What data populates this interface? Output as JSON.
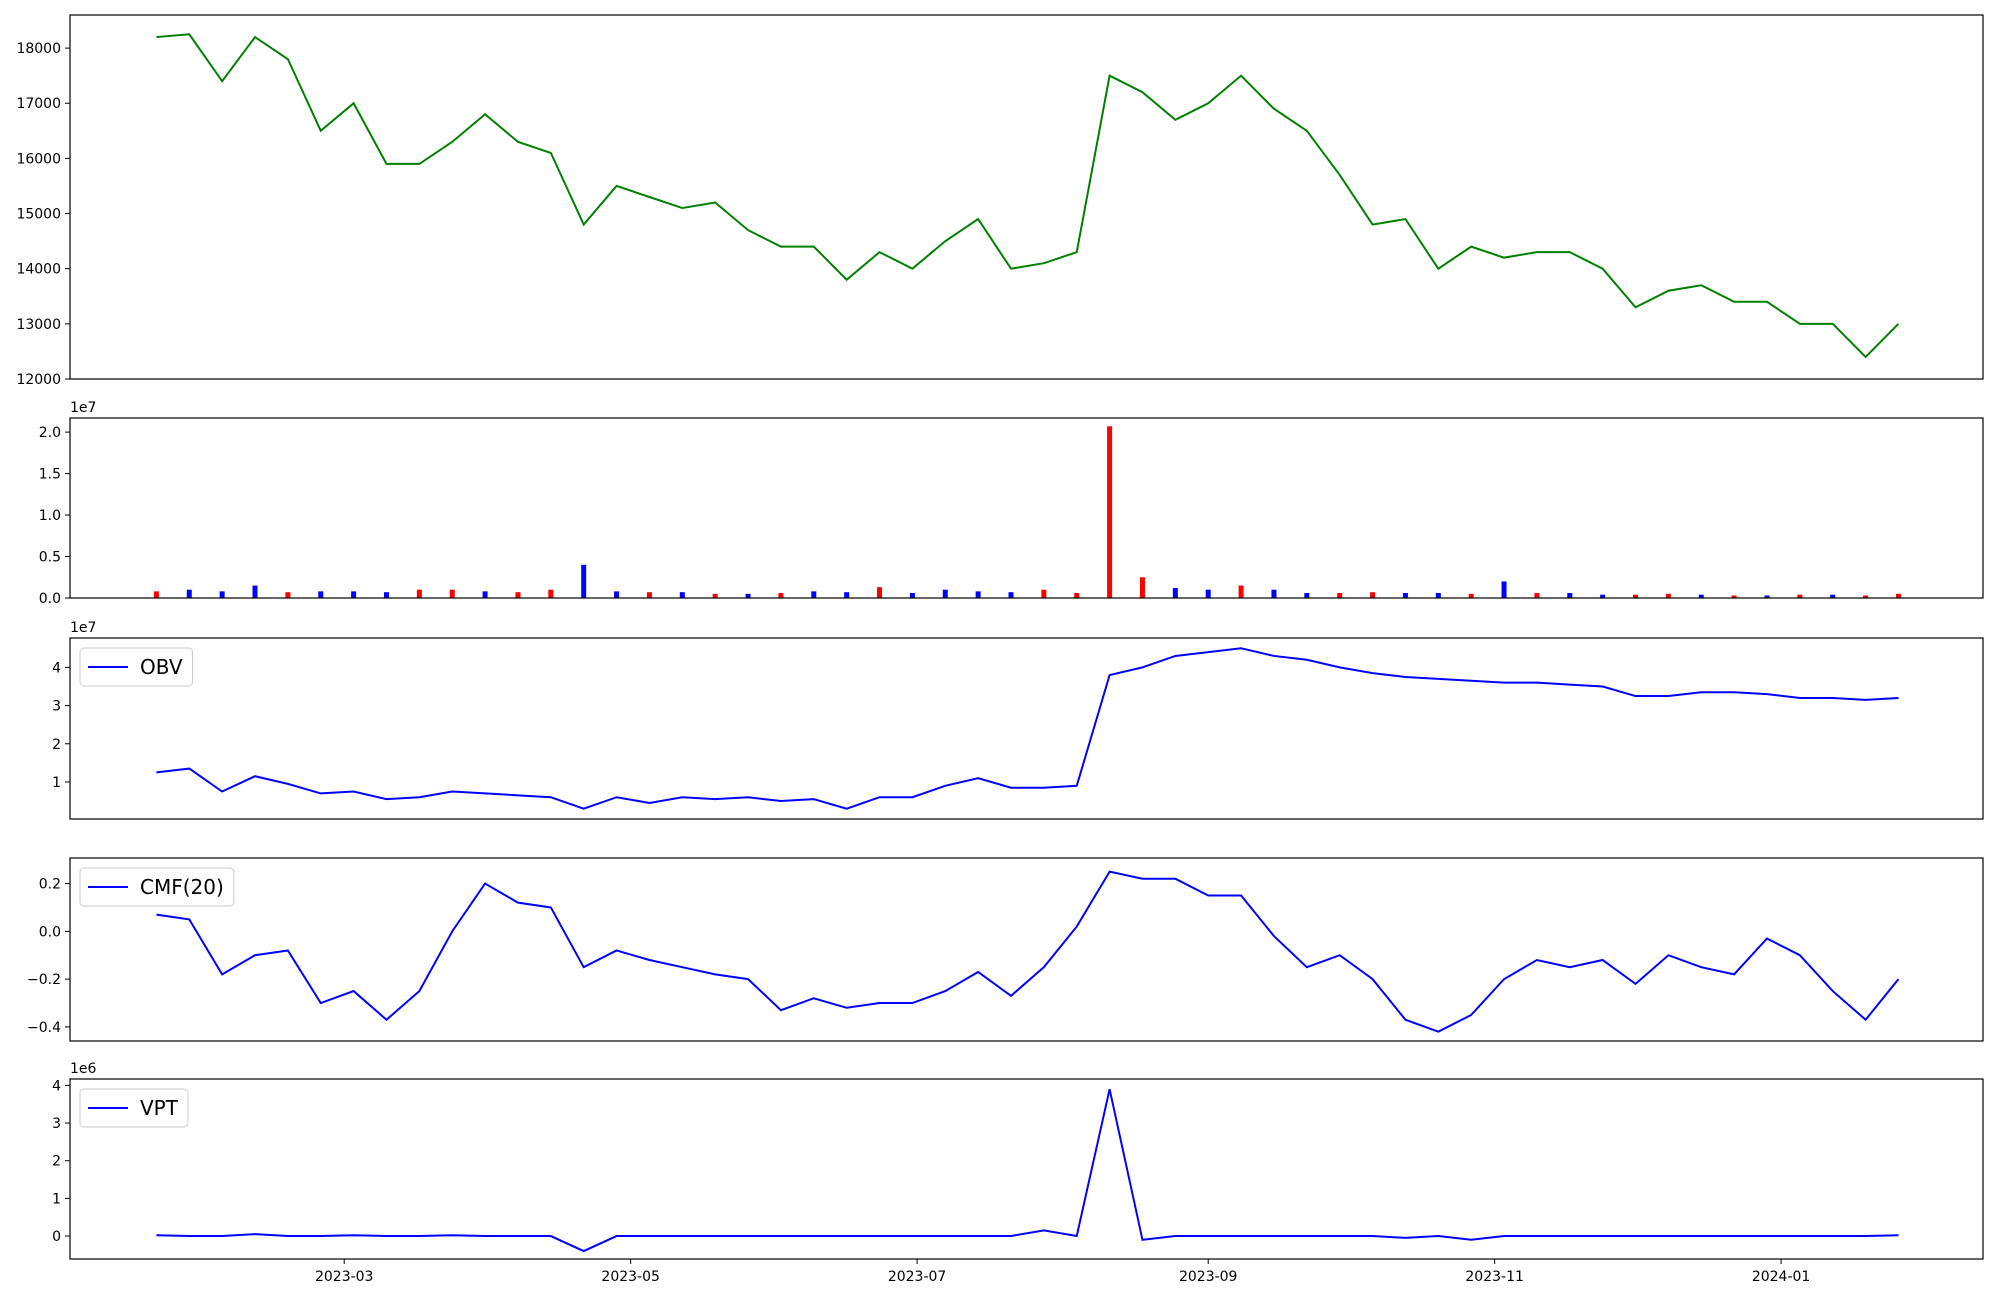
{
  "chart_data": [
    {
      "type": "line",
      "xlim": [
        0.6,
        408
      ],
      "ylim": [
        12000,
        18600
      ],
      "yticks": [
        12000,
        13000,
        14000,
        15000,
        16000,
        17000,
        18000
      ],
      "x": [
        19,
        26,
        33,
        40,
        47,
        54,
        61,
        68,
        75,
        82,
        89,
        96,
        103,
        110,
        117,
        124,
        131,
        138,
        145,
        152,
        159,
        166,
        173,
        180,
        187,
        194,
        201,
        208,
        215,
        222,
        229,
        236,
        243,
        250,
        257,
        264,
        271,
        278,
        285,
        292,
        299,
        306,
        313,
        320,
        327,
        334,
        341,
        348,
        355,
        362,
        369,
        376,
        383,
        390
      ],
      "series": [
        {
          "color": "#008000",
          "values": [
            18200,
            18250,
            17400,
            18200,
            17800,
            16500,
            17000,
            15900,
            15900,
            16300,
            16800,
            16300,
            16100,
            14800,
            15500,
            15300,
            15100,
            15200,
            14700,
            14400,
            14400,
            13800,
            14300,
            14000,
            14500,
            14900,
            14000,
            14100,
            14300,
            17500,
            17200,
            16700,
            17000,
            17500,
            16900,
            16500,
            15700,
            14800,
            14900,
            14000,
            14400,
            14200,
            14300,
            14300,
            14000,
            13300,
            13600,
            13700,
            13400,
            13400,
            13000,
            13000,
            12400,
            13000
          ]
        }
      ]
    },
    {
      "type": "bar",
      "offset_label": "1e7",
      "xlim": [
        0.6,
        408
      ],
      "ylim": [
        0,
        2.17
      ],
      "yticks": [
        {
          "value": 0,
          "label": "0.0"
        },
        {
          "value": 0.5,
          "label": "0.5"
        },
        {
          "value": 1,
          "label": "1.0"
        },
        {
          "value": 1.5,
          "label": "1.5"
        },
        {
          "value": 2,
          "label": "2.0"
        }
      ],
      "x": [
        19,
        26,
        33,
        40,
        47,
        54,
        61,
        68,
        75,
        82,
        89,
        96,
        103,
        110,
        117,
        124,
        131,
        138,
        145,
        152,
        159,
        166,
        173,
        180,
        187,
        194,
        201,
        208,
        215,
        222,
        229,
        236,
        243,
        250,
        257,
        264,
        271,
        278,
        285,
        292,
        299,
        306,
        313,
        320,
        327,
        334,
        341,
        348,
        355,
        362,
        369,
        376,
        383,
        390
      ],
      "values": [
        0.08,
        0.1,
        0.08,
        0.15,
        0.07,
        0.08,
        0.08,
        0.07,
        0.1,
        0.1,
        0.08,
        0.07,
        0.1,
        0.4,
        0.08,
        0.07,
        0.07,
        0.05,
        0.05,
        0.06,
        0.08,
        0.07,
        0.13,
        0.06,
        0.1,
        0.08,
        0.07,
        0.1,
        0.06,
        2.07,
        0.25,
        0.12,
        0.1,
        0.15,
        0.1,
        0.06,
        0.06,
        0.07,
        0.06,
        0.06,
        0.05,
        0.2,
        0.06,
        0.06,
        0.04,
        0.04,
        0.05,
        0.04,
        0.03,
        0.03,
        0.04,
        0.04,
        0.03,
        0.05
      ],
      "colors": [
        "red",
        "blue",
        "blue",
        "blue",
        "red",
        "blue",
        "blue",
        "blue",
        "red",
        "red",
        "blue",
        "red",
        "red",
        "blue",
        "blue",
        "red",
        "blue",
        "red",
        "blue",
        "red",
        "blue",
        "blue",
        "red",
        "blue",
        "blue",
        "blue",
        "blue",
        "red",
        "red",
        "red",
        "red",
        "blue",
        "blue",
        "red",
        "blue",
        "blue",
        "red",
        "red",
        "blue",
        "blue",
        "red",
        "blue",
        "red",
        "blue",
        "blue",
        "red",
        "red",
        "blue",
        "red",
        "blue",
        "red",
        "blue",
        "red",
        "red"
      ]
    },
    {
      "type": "line",
      "offset_label": "1e7",
      "legend": "upper left",
      "xlim": [
        0.6,
        408
      ],
      "ylim": [
        0.03,
        4.77
      ],
      "yticks": [
        1,
        2,
        3,
        4
      ],
      "x": [
        19,
        26,
        33,
        40,
        47,
        54,
        61,
        68,
        75,
        82,
        89,
        96,
        103,
        110,
        117,
        124,
        131,
        138,
        145,
        152,
        159,
        166,
        173,
        180,
        187,
        194,
        201,
        208,
        215,
        222,
        229,
        236,
        243,
        250,
        257,
        264,
        271,
        278,
        285,
        292,
        299,
        306,
        313,
        320,
        327,
        334,
        341,
        348,
        355,
        362,
        369,
        376,
        383,
        390
      ],
      "series": [
        {
          "name": "OBV",
          "color": "#0000ff",
          "values": [
            1.25,
            1.35,
            0.75,
            1.15,
            0.95,
            0.7,
            0.75,
            0.55,
            0.6,
            0.75,
            0.7,
            0.65,
            0.6,
            0.3,
            0.6,
            0.45,
            0.6,
            0.55,
            0.6,
            0.5,
            0.55,
            0.3,
            0.6,
            0.6,
            0.9,
            1.1,
            0.85,
            0.85,
            0.9,
            3.8,
            4.0,
            4.3,
            4.4,
            4.5,
            4.3,
            4.2,
            4.0,
            3.85,
            3.75,
            3.7,
            3.65,
            3.6,
            3.6,
            3.55,
            3.5,
            3.25,
            3.25,
            3.35,
            3.35,
            3.3,
            3.2,
            3.2,
            3.15,
            3.2
          ]
        }
      ]
    },
    {
      "type": "line",
      "legend": "upper left",
      "xlim": [
        0.6,
        408
      ],
      "ylim": [
        -0.459,
        0.307
      ],
      "yticks": [
        {
          "value": -0.4,
          "label": "−0.4"
        },
        {
          "value": -0.2,
          "label": "−0.2"
        },
        {
          "value": 0,
          "label": "0.0"
        },
        {
          "value": 0.2,
          "label": "0.2"
        }
      ],
      "x": [
        19,
        26,
        33,
        40,
        47,
        54,
        61,
        68,
        75,
        82,
        89,
        96,
        103,
        110,
        117,
        124,
        131,
        138,
        145,
        152,
        159,
        166,
        173,
        180,
        187,
        194,
        201,
        208,
        215,
        222,
        229,
        236,
        243,
        250,
        257,
        264,
        271,
        278,
        285,
        292,
        299,
        306,
        313,
        320,
        327,
        334,
        341,
        348,
        355,
        362,
        369,
        376,
        383,
        390
      ],
      "series": [
        {
          "name": "CMF(20)",
          "color": "#0000ff",
          "values": [
            0.07,
            0.05,
            -0.18,
            -0.1,
            -0.08,
            -0.3,
            -0.25,
            -0.37,
            -0.25,
            0.0,
            0.2,
            0.12,
            0.1,
            -0.15,
            -0.08,
            -0.12,
            -0.15,
            -0.18,
            -0.2,
            -0.33,
            -0.28,
            -0.32,
            -0.3,
            -0.3,
            -0.25,
            -0.17,
            -0.27,
            -0.15,
            0.02,
            0.25,
            0.22,
            0.22,
            0.15,
            0.15,
            -0.02,
            -0.15,
            -0.1,
            -0.2,
            -0.37,
            -0.42,
            -0.35,
            -0.2,
            -0.12,
            -0.15,
            -0.12,
            -0.22,
            -0.1,
            -0.15,
            -0.18,
            -0.03,
            -0.1,
            -0.25,
            -0.37,
            -0.2
          ]
        }
      ]
    },
    {
      "type": "line",
      "offset_label": "1e6",
      "legend": "upper left",
      "xlim": [
        0.6,
        408
      ],
      "ylim": [
        -0.61,
        4.17
      ],
      "yticks": [
        0,
        1,
        2,
        3,
        4
      ],
      "xticks": [
        {
          "value": 59,
          "label": "2023-03"
        },
        {
          "value": 120,
          "label": "2023-05"
        },
        {
          "value": 181,
          "label": "2023-07"
        },
        {
          "value": 243,
          "label": "2023-09"
        },
        {
          "value": 304,
          "label": "2023-11"
        },
        {
          "value": 365,
          "label": "2024-01"
        }
      ],
      "x": [
        19,
        26,
        33,
        40,
        47,
        54,
        61,
        68,
        75,
        82,
        89,
        96,
        103,
        110,
        117,
        124,
        131,
        138,
        145,
        152,
        159,
        166,
        173,
        180,
        187,
        194,
        201,
        208,
        215,
        222,
        229,
        236,
        243,
        250,
        257,
        264,
        271,
        278,
        285,
        292,
        299,
        306,
        313,
        320,
        327,
        334,
        341,
        348,
        355,
        362,
        369,
        376,
        383,
        390
      ],
      "series": [
        {
          "name": "VPT",
          "color": "#0000ff",
          "values": [
            0.02,
            0.0,
            0.0,
            0.05,
            0.0,
            0.0,
            0.02,
            0.0,
            0.0,
            0.02,
            0.0,
            0.0,
            0.0,
            -0.4,
            0.0,
            0.0,
            0.0,
            0.0,
            0.0,
            0.0,
            0.0,
            0.0,
            0.0,
            0.0,
            0.0,
            0.0,
            0.0,
            0.15,
            0.0,
            3.9,
            -0.1,
            0.0,
            0.0,
            0.0,
            0.0,
            0.0,
            0.0,
            0.0,
            -0.05,
            0.0,
            -0.1,
            0.0,
            0.0,
            0.0,
            0.0,
            0.0,
            0.0,
            0.0,
            0.0,
            0.0,
            0.0,
            0.0,
            0.0,
            0.02
          ]
        }
      ]
    }
  ]
}
